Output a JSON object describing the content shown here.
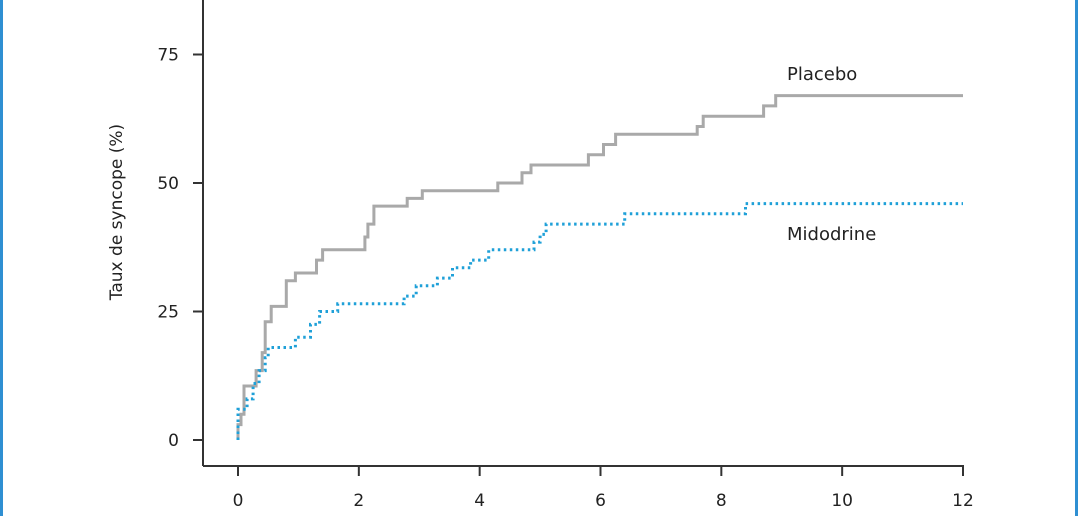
{
  "chart_data": {
    "type": "line",
    "title": "",
    "ylabel": "Taux de syncope (%)",
    "xlabel": "",
    "xlim": [
      0,
      12
    ],
    "ylim": [
      0,
      85
    ],
    "x_ticks": [
      "0",
      "2",
      "4",
      "6",
      "8",
      "10",
      "12"
    ],
    "y_ticks": [
      "0",
      "25",
      "50",
      "75"
    ],
    "grid": false,
    "series": [
      {
        "name": "Placebo",
        "color": "#a9a9a9",
        "style": "solid-step",
        "points": [
          [
            0,
            0
          ],
          [
            0,
            3
          ],
          [
            0.05,
            3
          ],
          [
            0.05,
            5
          ],
          [
            0.1,
            5
          ],
          [
            0.1,
            10.5
          ],
          [
            0.3,
            10.5
          ],
          [
            0.3,
            13.5
          ],
          [
            0.4,
            13.5
          ],
          [
            0.4,
            17
          ],
          [
            0.45,
            17
          ],
          [
            0.45,
            23
          ],
          [
            0.55,
            23
          ],
          [
            0.55,
            26
          ],
          [
            0.8,
            26
          ],
          [
            0.8,
            31
          ],
          [
            0.95,
            31
          ],
          [
            0.95,
            32.5
          ],
          [
            1.3,
            32.5
          ],
          [
            1.3,
            35
          ],
          [
            1.4,
            35
          ],
          [
            1.4,
            37
          ],
          [
            2.1,
            37
          ],
          [
            2.1,
            39.5
          ],
          [
            2.15,
            39.5
          ],
          [
            2.15,
            42
          ],
          [
            2.25,
            42
          ],
          [
            2.25,
            45.5
          ],
          [
            2.8,
            45.5
          ],
          [
            2.8,
            47
          ],
          [
            3.05,
            47
          ],
          [
            3.05,
            48.5
          ],
          [
            4.3,
            48.5
          ],
          [
            4.3,
            50
          ],
          [
            4.7,
            50
          ],
          [
            4.7,
            52
          ],
          [
            4.85,
            52
          ],
          [
            4.85,
            53.5
          ],
          [
            5.8,
            53.5
          ],
          [
            5.8,
            55.5
          ],
          [
            6.05,
            55.5
          ],
          [
            6.05,
            57.5
          ],
          [
            6.25,
            57.5
          ],
          [
            6.25,
            59.5
          ],
          [
            7.6,
            59.5
          ],
          [
            7.6,
            61
          ],
          [
            7.7,
            61
          ],
          [
            7.7,
            63
          ],
          [
            8.7,
            63
          ],
          [
            8.7,
            65
          ],
          [
            8.9,
            65
          ],
          [
            8.9,
            67
          ],
          [
            12,
            67
          ]
        ]
      },
      {
        "name": "Midodrine",
        "color": "#1fa0d8",
        "style": "dotted-step",
        "points": [
          [
            0,
            0
          ],
          [
            0,
            6
          ],
          [
            0.15,
            6
          ],
          [
            0.15,
            8
          ],
          [
            0.25,
            8
          ],
          [
            0.25,
            11
          ],
          [
            0.35,
            11
          ],
          [
            0.35,
            13.5
          ],
          [
            0.45,
            13.5
          ],
          [
            0.45,
            16
          ],
          [
            0.5,
            16
          ],
          [
            0.5,
            18
          ],
          [
            0.95,
            18
          ],
          [
            0.95,
            20
          ],
          [
            1.2,
            20
          ],
          [
            1.2,
            22.5
          ],
          [
            1.35,
            22.5
          ],
          [
            1.35,
            25
          ],
          [
            1.65,
            25
          ],
          [
            1.65,
            26.5
          ],
          [
            2.75,
            26.5
          ],
          [
            2.75,
            28
          ],
          [
            2.95,
            28
          ],
          [
            2.95,
            30
          ],
          [
            3.3,
            30
          ],
          [
            3.3,
            31.5
          ],
          [
            3.55,
            31.5
          ],
          [
            3.55,
            33.5
          ],
          [
            3.85,
            33.5
          ],
          [
            3.85,
            35
          ],
          [
            4.15,
            35
          ],
          [
            4.15,
            37
          ],
          [
            4.9,
            37
          ],
          [
            4.9,
            38.5
          ],
          [
            5.0,
            38.5
          ],
          [
            5.0,
            40
          ],
          [
            5.1,
            40
          ],
          [
            5.1,
            42
          ],
          [
            6.4,
            42
          ],
          [
            6.4,
            44
          ],
          [
            8.4,
            44
          ],
          [
            8.4,
            46
          ],
          [
            12,
            46
          ]
        ]
      }
    ]
  }
}
